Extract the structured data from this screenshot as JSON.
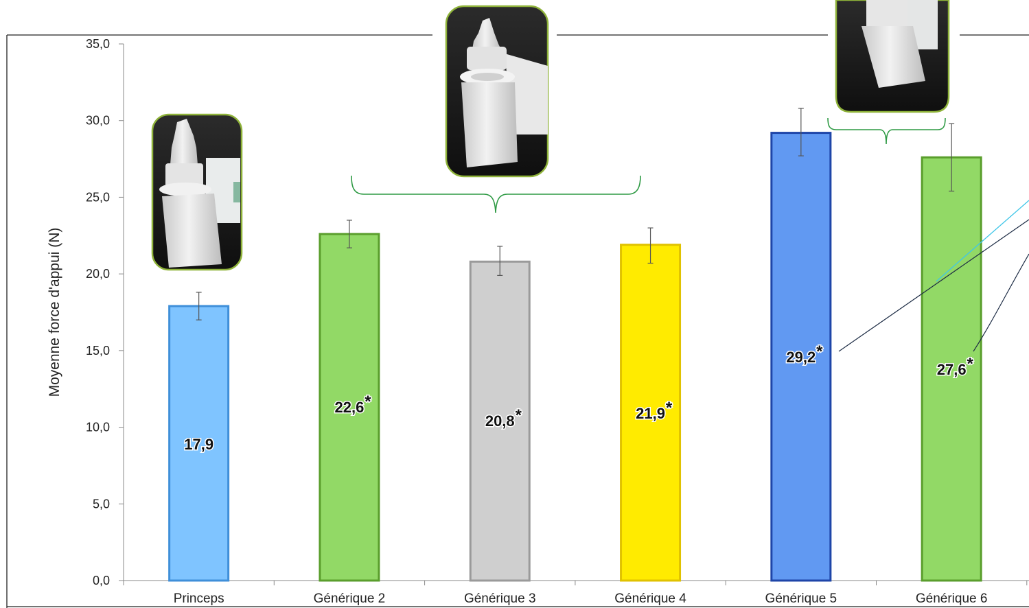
{
  "chart_data": {
    "type": "bar",
    "title": "",
    "xlabel": "",
    "ylabel": "Moyenne force d'appui (N)",
    "ylim": [
      0,
      35
    ],
    "yticks": [
      "0,0",
      "5,0",
      "10,0",
      "15,0",
      "20,0",
      "25,0",
      "30,0",
      "35,0"
    ],
    "categories": [
      "Princeps",
      "Générique 2",
      "Générique 3",
      "Générique 4",
      "Générique 5",
      "Générique 6"
    ],
    "values": [
      17.9,
      22.6,
      20.8,
      21.9,
      29.2,
      27.6
    ],
    "value_labels": [
      "17,9",
      "22,6",
      "20,8",
      "21,9",
      "29,2",
      "27,6"
    ],
    "significance": [
      "",
      "*",
      "*",
      "*",
      "*",
      "*"
    ],
    "error_low": [
      17.0,
      21.7,
      19.9,
      20.7,
      27.7,
      25.4
    ],
    "error_high": [
      18.8,
      23.5,
      21.8,
      23.0,
      30.8,
      29.8
    ],
    "colors": {
      "fill": [
        "#7fc4ff",
        "#92d966",
        "#cfcfcf",
        "#ffeb00",
        "#6199f2",
        "#92d966"
      ],
      "edge": [
        "#3f8fd9",
        "#5a9e2c",
        "#9a9a9a",
        "#e0c200",
        "#1e45a8",
        "#5a9e2c"
      ],
      "bracket": "#2e9a44",
      "photo_border": "#8fb33a"
    },
    "grid": false,
    "legend": "none",
    "images": [
      "eye-drop-bottle-photo",
      "eye-drop-bottle-photo",
      "eye-drop-bottle-photo"
    ]
  }
}
